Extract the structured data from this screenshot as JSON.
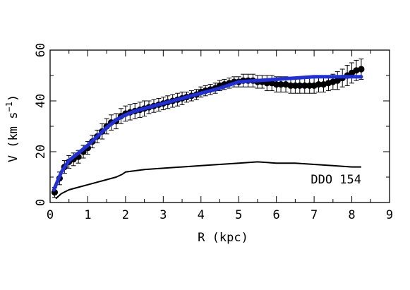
{
  "chart_data": {
    "type": "scatter",
    "xlabel": "R (kpc)",
    "ylabel_main": "V (km s",
    "ylabel_sup": "−1",
    "ylabel_close": ")",
    "annotation": "DDO 154",
    "xlim": [
      0,
      9
    ],
    "ylim": [
      0,
      60
    ],
    "xticks": [
      0,
      1,
      2,
      3,
      4,
      5,
      6,
      7,
      8,
      9
    ],
    "yticks": [
      0,
      20,
      40,
      60
    ],
    "observed": {
      "x": [
        0.12,
        0.25,
        0.38,
        0.5,
        0.62,
        0.75,
        0.88,
        1.0,
        1.12,
        1.25,
        1.38,
        1.5,
        1.62,
        1.75,
        1.88,
        2.0,
        2.12,
        2.25,
        2.38,
        2.5,
        2.62,
        2.75,
        2.88,
        3.0,
        3.12,
        3.25,
        3.38,
        3.5,
        3.62,
        3.75,
        3.88,
        4.0,
        4.12,
        4.25,
        4.38,
        4.5,
        4.62,
        4.75,
        4.88,
        5.0,
        5.12,
        5.25,
        5.38,
        5.5,
        5.62,
        5.75,
        5.88,
        6.0,
        6.12,
        6.25,
        6.38,
        6.5,
        6.62,
        6.75,
        6.88,
        7.0,
        7.12,
        7.25,
        7.38,
        7.5,
        7.62,
        7.75,
        7.88,
        8.0,
        8.12,
        8.25
      ],
      "y": [
        4,
        9.5,
        14,
        16,
        17,
        18,
        20,
        21.5,
        24,
        26,
        28,
        30,
        31.5,
        32,
        34,
        35,
        35.5,
        36,
        36.5,
        37,
        37.5,
        38,
        38.5,
        39,
        39.5,
        40,
        40.5,
        41,
        41.5,
        42,
        42.5,
        43.5,
        44,
        44.5,
        45,
        46,
        46.5,
        47,
        47.5,
        47.5,
        48,
        48,
        48,
        47.5,
        47.5,
        47,
        47,
        46.5,
        46.5,
        46.5,
        46,
        46,
        46,
        46,
        46,
        46,
        46.5,
        46.5,
        47,
        47.5,
        48,
        49,
        50,
        51,
        52,
        52.5
      ],
      "err": [
        2,
        2.5,
        2.5,
        2.5,
        2.5,
        2.5,
        2.5,
        2.5,
        2.5,
        2.5,
        3,
        3,
        3,
        3,
        3,
        3,
        3,
        3,
        3,
        3,
        2.5,
        2.5,
        2.5,
        2.5,
        2.5,
        2.5,
        2.5,
        2.5,
        2,
        2,
        2,
        2,
        2,
        2,
        2,
        2,
        2,
        2,
        2,
        2,
        2.5,
        2.5,
        2.5,
        2.5,
        2.5,
        3,
        3,
        3,
        3,
        3,
        3,
        3,
        3,
        3,
        3,
        3,
        3,
        3,
        3,
        3,
        3.5,
        3.5,
        4,
        4,
        4,
        4
      ]
    },
    "model_fit": {
      "color": "#1f2fdc",
      "x": [
        0.1,
        0.3,
        0.5,
        0.75,
        1.0,
        1.25,
        1.5,
        1.75,
        2.0,
        2.25,
        2.5,
        3.0,
        3.5,
        4.0,
        4.5,
        5.0,
        5.5,
        6.0,
        6.5,
        7.0,
        7.5,
        8.0,
        8.25
      ],
      "y": [
        5,
        12,
        16.5,
        19.5,
        22.5,
        26,
        29.5,
        32.5,
        34.5,
        36,
        37,
        39,
        41,
        43,
        45,
        47.5,
        48,
        48.5,
        49,
        49.5,
        49.5,
        49.5,
        49.5
      ]
    },
    "component_curve": {
      "color": "#000000",
      "x": [
        0.15,
        0.3,
        0.5,
        0.75,
        1.0,
        1.25,
        1.5,
        1.75,
        1.9,
        2.0,
        2.25,
        2.5,
        3.0,
        3.5,
        4.0,
        4.5,
        5.0,
        5.5,
        6.0,
        6.5,
        7.0,
        7.5,
        8.0,
        8.25
      ],
      "y": [
        1.5,
        3.5,
        5,
        6,
        7,
        8,
        9,
        10,
        11,
        12,
        12.5,
        13,
        13.5,
        14,
        14.5,
        15,
        15.5,
        16,
        15.5,
        15.5,
        15,
        14.5,
        14,
        14
      ]
    }
  }
}
